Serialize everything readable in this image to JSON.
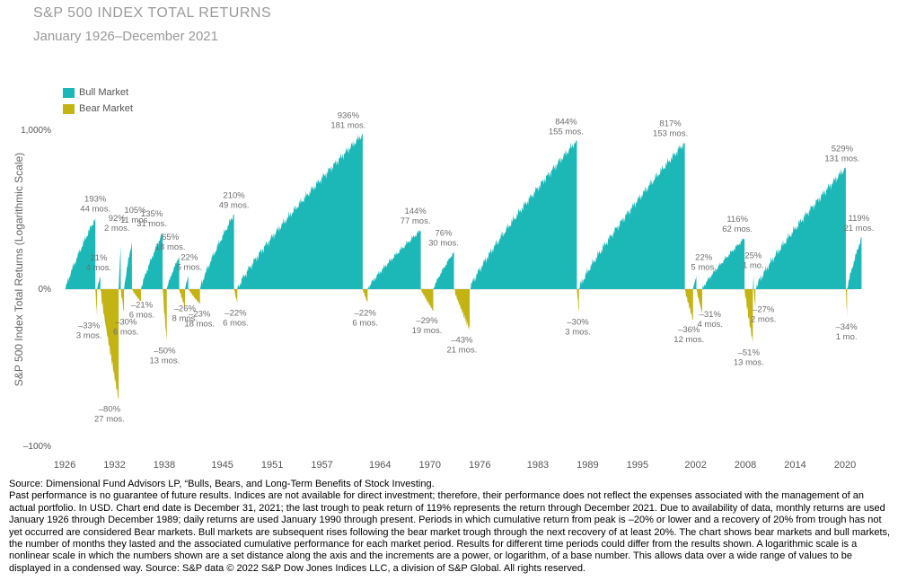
{
  "title": "S&P 500 INDEX TOTAL RETURNS",
  "subtitle": "January 1926–December 2021",
  "colors": {
    "bull": "#1cb8b8",
    "bear": "#c3b414",
    "label": "#6e6e6e",
    "axis": "#555555"
  },
  "chart_data": {
    "type": "area",
    "ylabel": "S&P 500 Index Total Returns (Logarithmic Scale)",
    "y_scale": "log",
    "y_ticks": [
      "1,000%",
      "0%",
      "–100%"
    ],
    "x_ticks": [
      "1926",
      "1932",
      "1938",
      "1945",
      "1951",
      "1957",
      "1964",
      "1970",
      "1976",
      "1983",
      "1989",
      "1995",
      "2002",
      "2008",
      "2014",
      "2020"
    ],
    "legend": [
      {
        "name": "Bull Market",
        "color": "#1cb8b8"
      },
      {
        "name": "Bear Market",
        "color": "#c3b414"
      }
    ],
    "legend_position": "top-left",
    "bull_markets": [
      {
        "start": 1926.1,
        "end": 1929.7,
        "return_pct": 193,
        "label": "193%",
        "months": "44 mos."
      },
      {
        "start": 1929.9,
        "end": 1930.3,
        "return_pct": 21,
        "label": "21%",
        "months": "4 mos."
      },
      {
        "start": 1932.5,
        "end": 1932.75,
        "return_pct": 92,
        "label": "92%",
        "months": "2 mos."
      },
      {
        "start": 1933.15,
        "end": 1934.1,
        "return_pct": 105,
        "label": "105%",
        "months": "11 mos."
      },
      {
        "start": 1935.2,
        "end": 1937.8,
        "return_pct": 135,
        "label": "135%",
        "months": "31 mos."
      },
      {
        "start": 1938.3,
        "end": 1939.8,
        "return_pct": 65,
        "label": "65%",
        "months": "18 mos."
      },
      {
        "start": 1940.5,
        "end": 1940.9,
        "return_pct": 22,
        "label": "22%",
        "months": "5 mos."
      },
      {
        "start": 1942.3,
        "end": 1946.4,
        "return_pct": 210,
        "label": "210%",
        "months": "49 mos."
      },
      {
        "start": 1946.8,
        "end": 1961.9,
        "return_pct": 936,
        "label": "936%",
        "months": "181 mos."
      },
      {
        "start": 1962.5,
        "end": 1968.9,
        "return_pct": 144,
        "label": "144%",
        "months": "77 mos."
      },
      {
        "start": 1970.4,
        "end": 1972.9,
        "return_pct": 76,
        "label": "76%",
        "months": "30 mos."
      },
      {
        "start": 1974.8,
        "end": 1987.7,
        "return_pct": 844,
        "label": "844%",
        "months": "155 mos."
      },
      {
        "start": 1987.95,
        "end": 2000.7,
        "return_pct": 817,
        "label": "817%",
        "months": "153 mos."
      },
      {
        "start": 2001.7,
        "end": 2002.1,
        "return_pct": 22,
        "label": "22%",
        "months": "5 mos."
      },
      {
        "start": 2002.8,
        "end": 2007.9,
        "return_pct": 116,
        "label": "116%",
        "months": "62 mos."
      },
      {
        "start": 2008.9,
        "end": 2009.0,
        "return_pct": 25,
        "label": "25%",
        "months": "1 mo."
      },
      {
        "start": 2009.2,
        "end": 2020.1,
        "return_pct": 529,
        "label": "529%",
        "months": "131 mos."
      },
      {
        "start": 2020.25,
        "end": 2021.99,
        "return_pct": 119,
        "label": "119%",
        "months": "21 mos."
      }
    ],
    "bear_markets": [
      {
        "start": 1929.7,
        "end": 1929.9,
        "return_pct": -33,
        "label": "–33%",
        "months": "3 mos."
      },
      {
        "start": 1930.3,
        "end": 1932.5,
        "return_pct": -80,
        "label": "–80%",
        "months": "27 mos."
      },
      {
        "start": 1932.75,
        "end": 1933.15,
        "return_pct": -30,
        "label": "–30%",
        "months": "6 mos."
      },
      {
        "start": 1934.1,
        "end": 1935.2,
        "return_pct": -21,
        "label": "–21%",
        "months": "6 mos."
      },
      {
        "start": 1937.8,
        "end": 1938.3,
        "return_pct": -50,
        "label": "–50%",
        "months": "13 mos."
      },
      {
        "start": 1939.8,
        "end": 1940.5,
        "return_pct": -26,
        "label": "–26%",
        "months": "8 mos."
      },
      {
        "start": 1940.9,
        "end": 1942.3,
        "return_pct": -23,
        "label": "–23%",
        "months": "18 mos."
      },
      {
        "start": 1946.4,
        "end": 1946.8,
        "return_pct": -22,
        "label": "–22%",
        "months": "6 mos."
      },
      {
        "start": 1961.9,
        "end": 1962.5,
        "return_pct": -22,
        "label": "–22%",
        "months": "6 mos."
      },
      {
        "start": 1968.9,
        "end": 1970.4,
        "return_pct": -29,
        "label": "–29%",
        "months": "19 mos."
      },
      {
        "start": 1972.9,
        "end": 1974.8,
        "return_pct": -43,
        "label": "–43%",
        "months": "21 mos."
      },
      {
        "start": 1987.7,
        "end": 1987.95,
        "return_pct": -30,
        "label": "–30%",
        "months": "3 mos."
      },
      {
        "start": 2000.7,
        "end": 2001.7,
        "return_pct": -36,
        "label": "–36%",
        "months": "12 mos."
      },
      {
        "start": 2002.1,
        "end": 2002.8,
        "return_pct": -31,
        "label": "–31%",
        "months": "4 mos."
      },
      {
        "start": 2007.9,
        "end": 2008.9,
        "return_pct": -51,
        "label": "–51%",
        "months": "13 mos."
      },
      {
        "start": 2009.0,
        "end": 2009.2,
        "return_pct": -27,
        "label": "–27%",
        "months": "2 mos."
      },
      {
        "start": 2020.1,
        "end": 2020.25,
        "return_pct": -34,
        "label": "–34%",
        "months": "1 mo."
      }
    ]
  },
  "footer": {
    "source": "Source: Dimensional Fund Advisors LP, “Bulls, Bears, and Long-Term Benefits of Stock Investing.",
    "disclaimer": "Past performance is no guarantee of future results. Indices are not available for direct investment; therefore, their performance does not reflect the expenses associated with the management of an actual portfolio. In USD. Chart end date is December 31, 2021; the last trough to peak return of 119% represents the return through December 2021. Due to availability of data, monthly returns are used January 1926 through December 1989; daily returns are used January 1990 through present. Periods in which cumulative return from peak is –20% or lower and a recovery of 20% from trough has not yet occurred are considered Bear markets. Bull markets are subsequent rises following the bear market trough through the next recovery of at least 20%. The chart shows bear markets and bull markets, the number of months they lasted and the associated cumulative performance for each market period. Results for different time periods could differ from the results shown. A logarithmic scale is a nonlinear scale in which the numbers shown are a set distance along the axis and the increments are a power, or logarithm, of a base number. This allows data over a wide range of values to be displayed in a condensed way. Source: S&P data © 2022 S&P Dow Jones Indices LLC, a division of S&P Global. All rights reserved."
  }
}
